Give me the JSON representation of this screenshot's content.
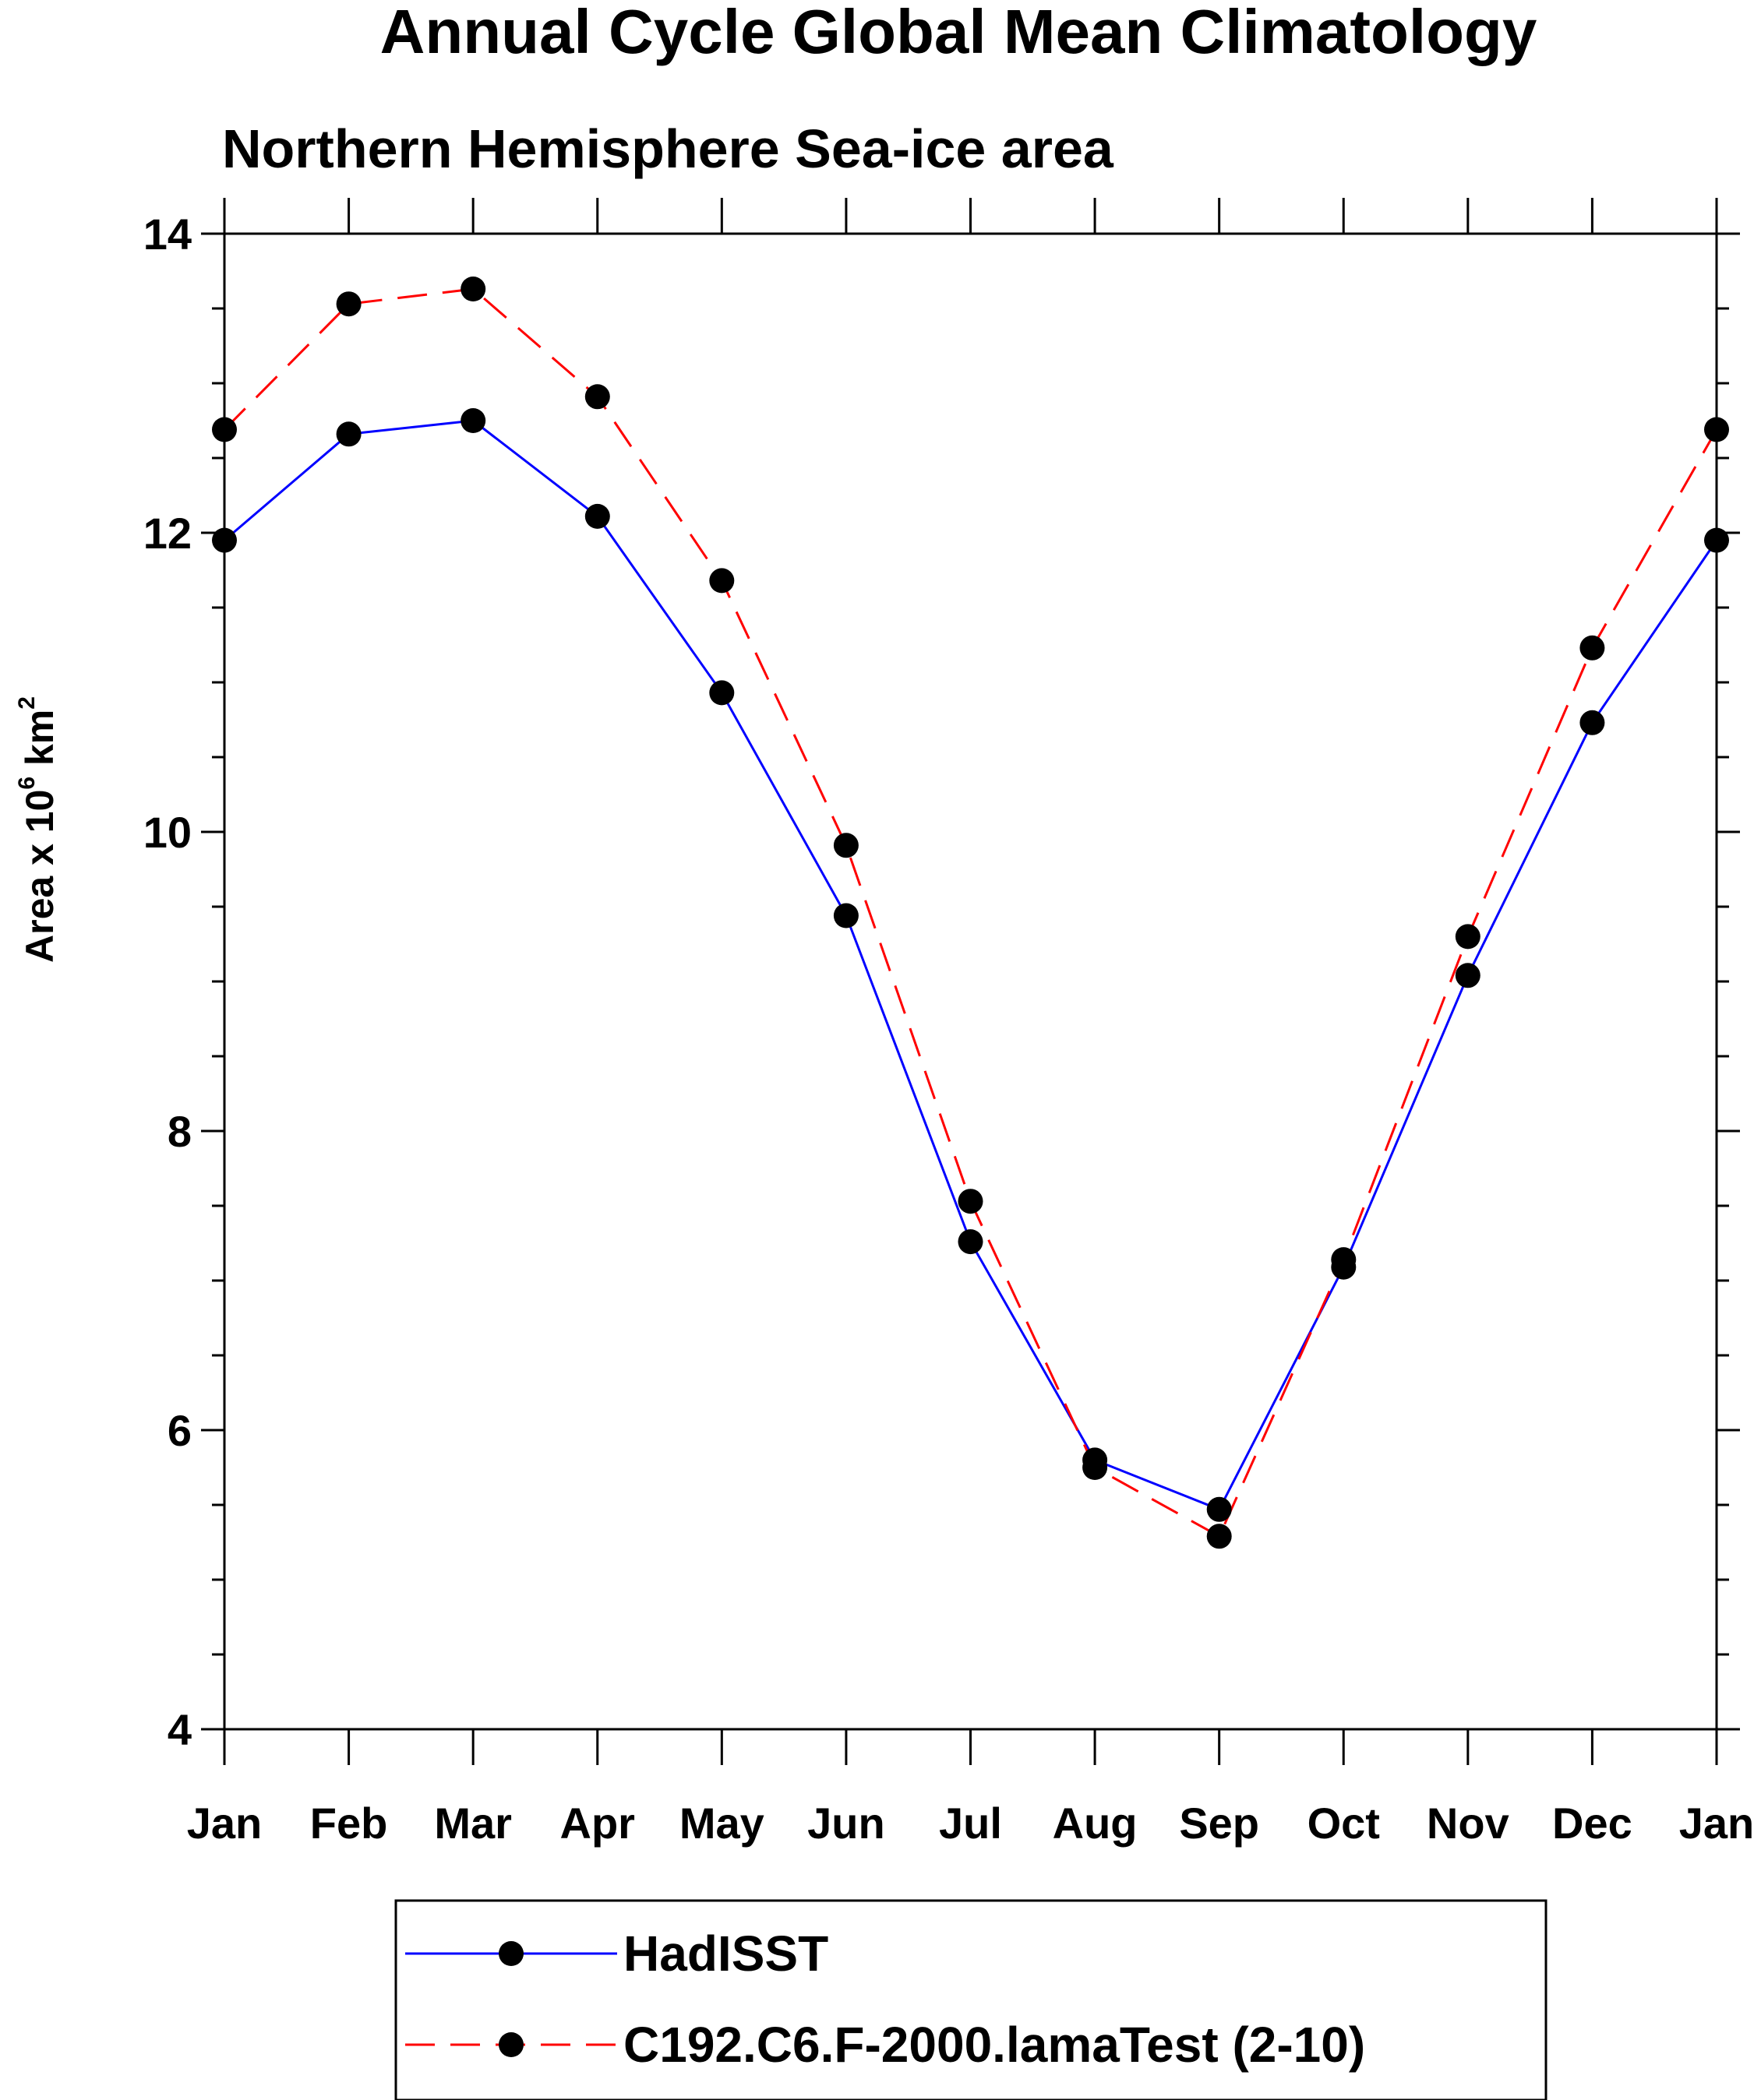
{
  "chart_data": {
    "type": "line",
    "title": "Annual Cycle Global Mean Climatology",
    "subtitle": "Northern Hemisphere Sea-ice area",
    "ylabel": "Area x 10",
    "ylabel_exp": "6",
    "ylabel_unit": " km",
    "ylabel_unit_exp": "2",
    "xlabel": "",
    "ylim": [
      4,
      14
    ],
    "yticks": [
      "4",
      "6",
      "8",
      "10",
      "12",
      "14"
    ],
    "ytick_values": [
      4,
      6,
      8,
      10,
      12,
      14
    ],
    "y_minor_step": 0.5,
    "categories": [
      "Jan",
      "Feb",
      "Mar",
      "Apr",
      "May",
      "Jun",
      "Jul",
      "Aug",
      "Sep",
      "Oct",
      "Nov",
      "Dec",
      "Jan"
    ],
    "legend_position": "bottom",
    "series": [
      {
        "name": "HadISST",
        "color": "#0000ff",
        "style": "solid",
        "marker_color": "#000000",
        "values": [
          11.95,
          12.66,
          12.75,
          12.11,
          10.93,
          9.44,
          7.26,
          5.8,
          5.47,
          7.09,
          9.04,
          10.73,
          11.95
        ]
      },
      {
        "name": "C192.C6.F-2000.lamaTest (2-10)",
        "color": "#ff0000",
        "style": "dashed",
        "marker_color": "#000000",
        "values": [
          12.69,
          13.53,
          13.63,
          12.91,
          11.68,
          9.91,
          7.53,
          5.75,
          5.29,
          7.14,
          9.3,
          11.23,
          12.69
        ]
      }
    ]
  }
}
